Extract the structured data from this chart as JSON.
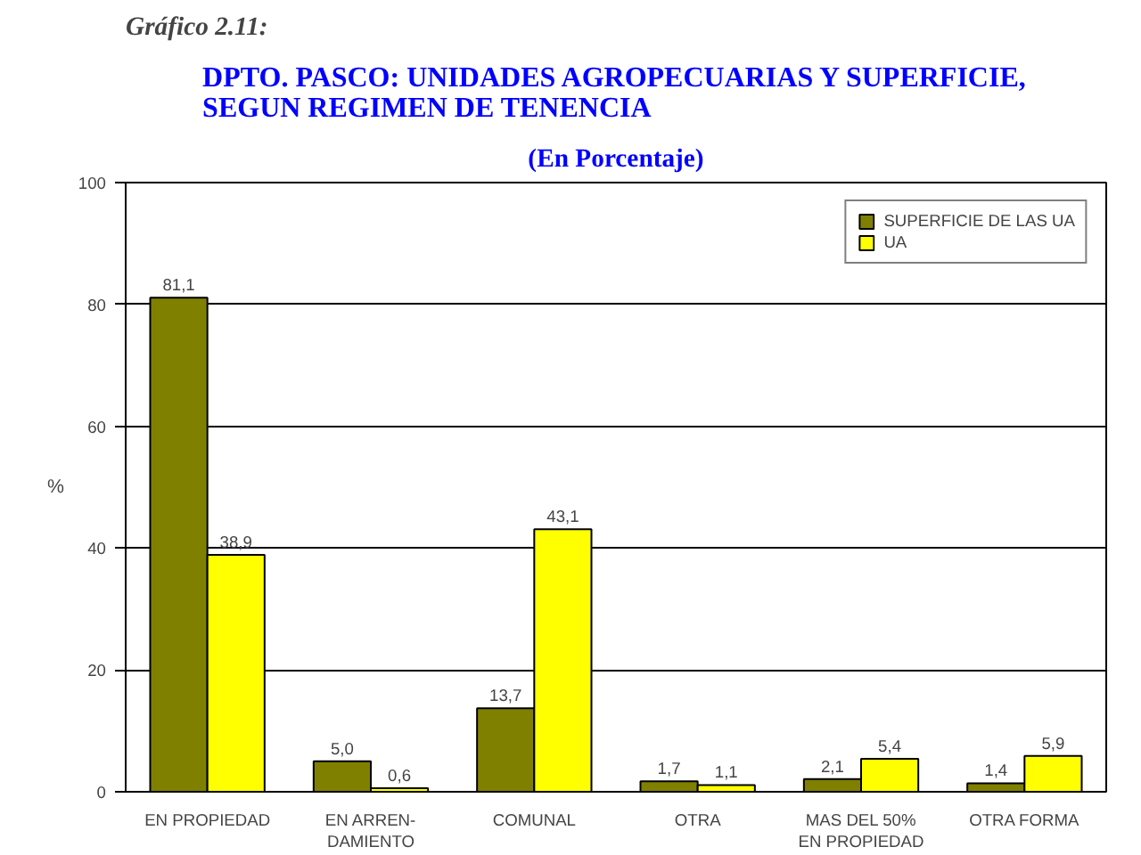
{
  "chart_data": {
    "type": "bar",
    "title": "DPTO. PASCO: UNIDADES AGROPECUARIAS Y SUPERFICIE,\nSEGUN REGIMEN DE TENENCIA",
    "subtitle": "(En Porcentaje)",
    "ylabel": "%",
    "annotations": [
      "Gráfico 2.11:"
    ],
    "categories": [
      "EN PROPIEDAD",
      "EN ARREN-\nDAMIENTO",
      "COMUNAL",
      "OTRA",
      "MAS DEL 50%\nEN PROPIEDAD",
      "OTRA FORMA"
    ],
    "series": [
      {
        "name": "SUPERFICIE DE LAS UA",
        "color": "#808000",
        "values": [
          81.1,
          5.0,
          13.7,
          1.7,
          2.1,
          1.4
        ],
        "value_labels": [
          "81,1",
          "5,0",
          "13,7",
          "1,7",
          "2,1",
          "1,4"
        ]
      },
      {
        "name": "UA",
        "color": "#ffff00",
        "values": [
          38.9,
          0.6,
          43.1,
          1.1,
          5.4,
          5.9
        ],
        "value_labels": [
          "38,9",
          "0,6",
          "43,1",
          "1,1",
          "5,4",
          "5,9"
        ]
      }
    ],
    "ylim": [
      0,
      100
    ],
    "yticks": [
      0,
      20,
      40,
      60,
      80,
      100
    ],
    "grid": "y",
    "legend": "top right"
  }
}
